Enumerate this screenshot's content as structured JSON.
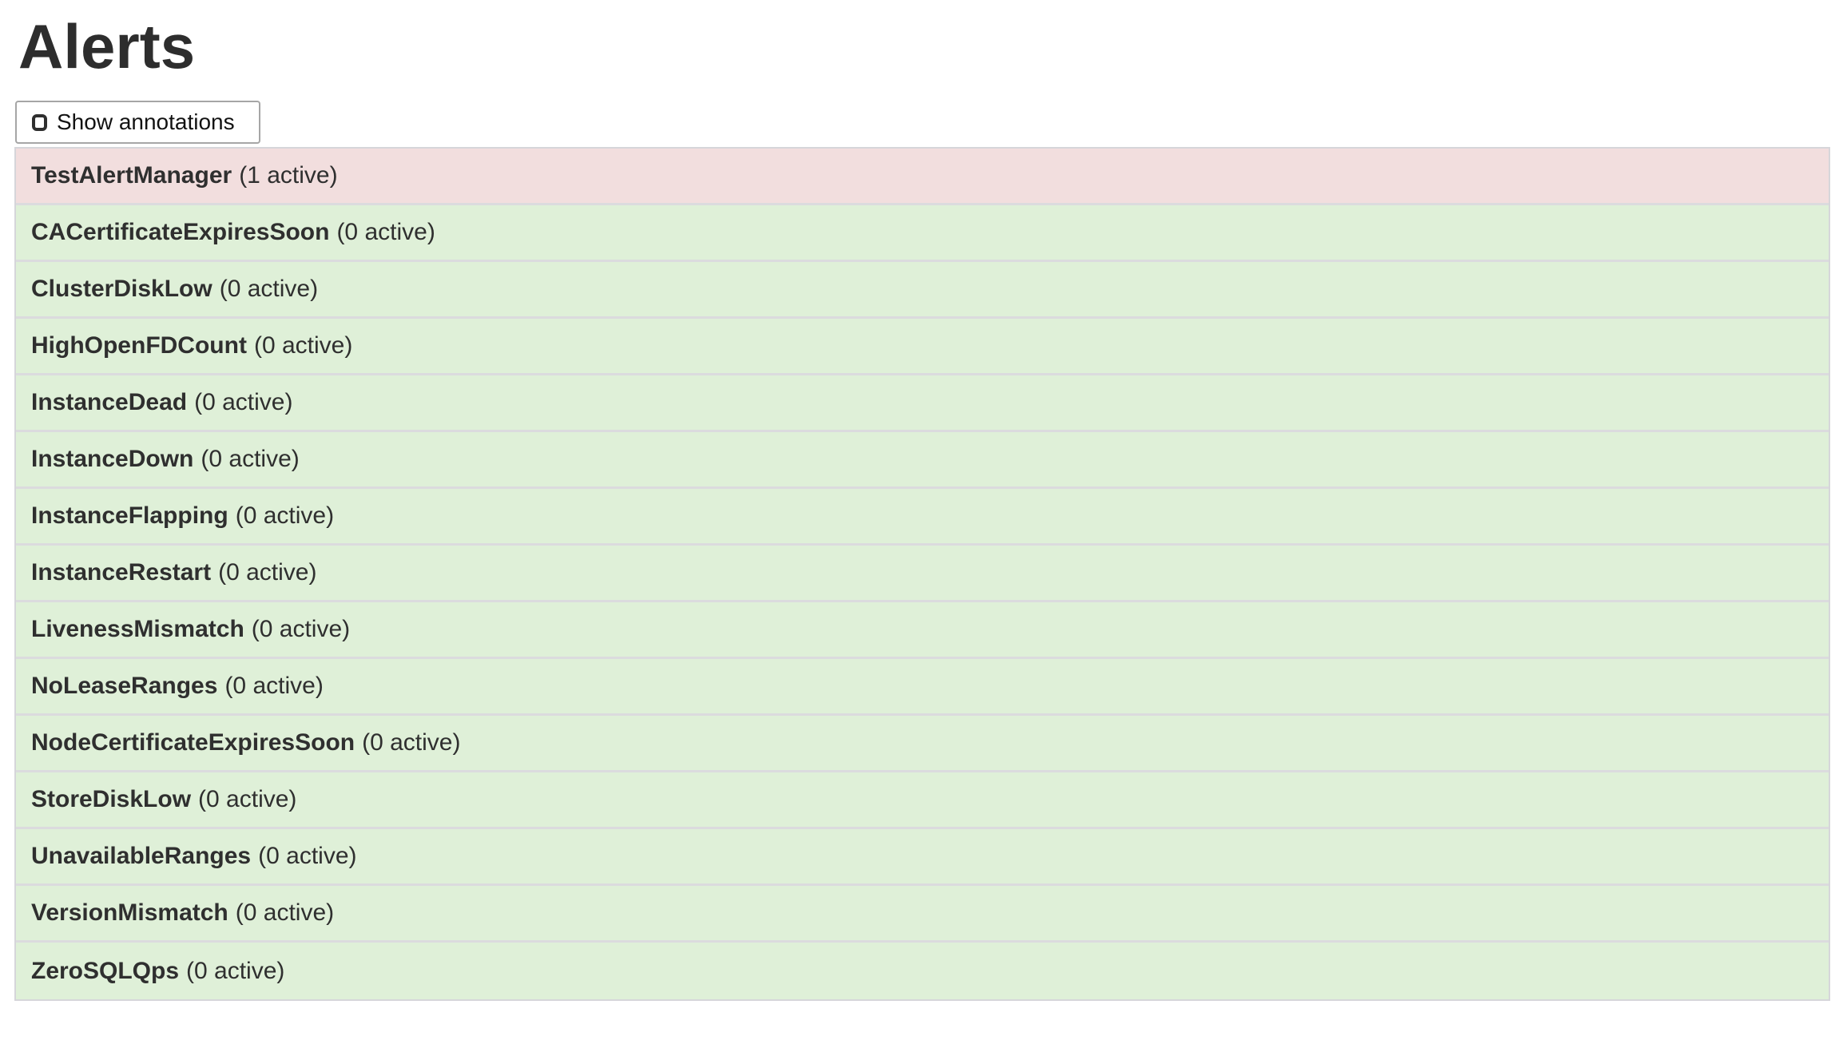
{
  "page": {
    "title": "Alerts"
  },
  "toolbar": {
    "show_annotations_label": "Show annotations",
    "checkbox_checked": false
  },
  "alerts": {
    "items": [
      {
        "name": "TestAlertManager",
        "active": 1,
        "count_label": "(1 active)",
        "status": "firing"
      },
      {
        "name": "CACertificateExpiresSoon",
        "active": 0,
        "count_label": "(0 active)",
        "status": "inactive"
      },
      {
        "name": "ClusterDiskLow",
        "active": 0,
        "count_label": "(0 active)",
        "status": "inactive"
      },
      {
        "name": "HighOpenFDCount",
        "active": 0,
        "count_label": "(0 active)",
        "status": "inactive"
      },
      {
        "name": "InstanceDead",
        "active": 0,
        "count_label": "(0 active)",
        "status": "inactive"
      },
      {
        "name": "InstanceDown",
        "active": 0,
        "count_label": "(0 active)",
        "status": "inactive"
      },
      {
        "name": "InstanceFlapping",
        "active": 0,
        "count_label": "(0 active)",
        "status": "inactive"
      },
      {
        "name": "InstanceRestart",
        "active": 0,
        "count_label": "(0 active)",
        "status": "inactive"
      },
      {
        "name": "LivenessMismatch",
        "active": 0,
        "count_label": "(0 active)",
        "status": "inactive"
      },
      {
        "name": "NoLeaseRanges",
        "active": 0,
        "count_label": "(0 active)",
        "status": "inactive"
      },
      {
        "name": "NodeCertificateExpiresSoon",
        "active": 0,
        "count_label": "(0 active)",
        "status": "inactive"
      },
      {
        "name": "StoreDiskLow",
        "active": 0,
        "count_label": "(0 active)",
        "status": "inactive"
      },
      {
        "name": "UnavailableRanges",
        "active": 0,
        "count_label": "(0 active)",
        "status": "inactive"
      },
      {
        "name": "VersionMismatch",
        "active": 0,
        "count_label": "(0 active)",
        "status": "inactive"
      },
      {
        "name": "ZeroSQLQps",
        "active": 0,
        "count_label": "(0 active)",
        "status": "inactive"
      }
    ]
  },
  "colors": {
    "firing_bg": "#f2dede",
    "inactive_bg": "#dff0d8",
    "row_border": "#dbdbde",
    "table_border": "#d6d6da",
    "text": "#2f2f2f",
    "title": "#2d2d2d",
    "button_border": "#a6a6a6"
  }
}
